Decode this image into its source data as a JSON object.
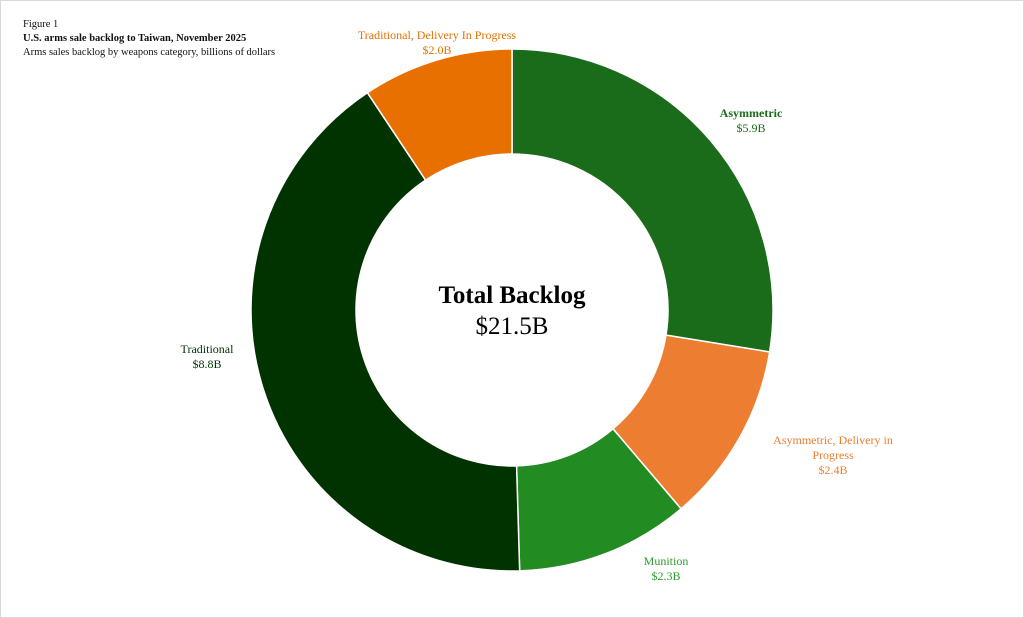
{
  "header": {
    "figure": "Figure 1",
    "title": "U.S. arms sale backlog to Taiwan, November 2025",
    "subtitle": "Arms sales backlog by weapons category, billions of dollars"
  },
  "chart_data": {
    "type": "pie",
    "donut": true,
    "title": "U.S. arms sale backlog to Taiwan, November 2025",
    "units": "billions of dollars",
    "center_title": "Total Backlog",
    "center_value": "$21.5B",
    "total": 21.5,
    "slices": [
      {
        "name": "Asymmetric",
        "value": 5.9,
        "value_label": "$5.9B",
        "color": "#1a6b1a",
        "label_color": "#1a6b1a"
      },
      {
        "name": "Asymmetric, Delivery in Progress",
        "value": 2.4,
        "value_label": "$2.4B",
        "color": "#ed7d31",
        "label_color": "#ed7d31"
      },
      {
        "name": "Munition",
        "value": 2.3,
        "value_label": "$2.3B",
        "color": "#228b22",
        "label_color": "#2e9a2e"
      },
      {
        "name": "Traditional",
        "value": 8.8,
        "value_label": "$8.8B",
        "color": "#003300",
        "label_color": "#003300"
      },
      {
        "name": "Traditional, Delivery In Progress",
        "value": 2.0,
        "value_label": "$2.0B",
        "color": "#e87000",
        "label_color": "#e87000"
      }
    ]
  }
}
